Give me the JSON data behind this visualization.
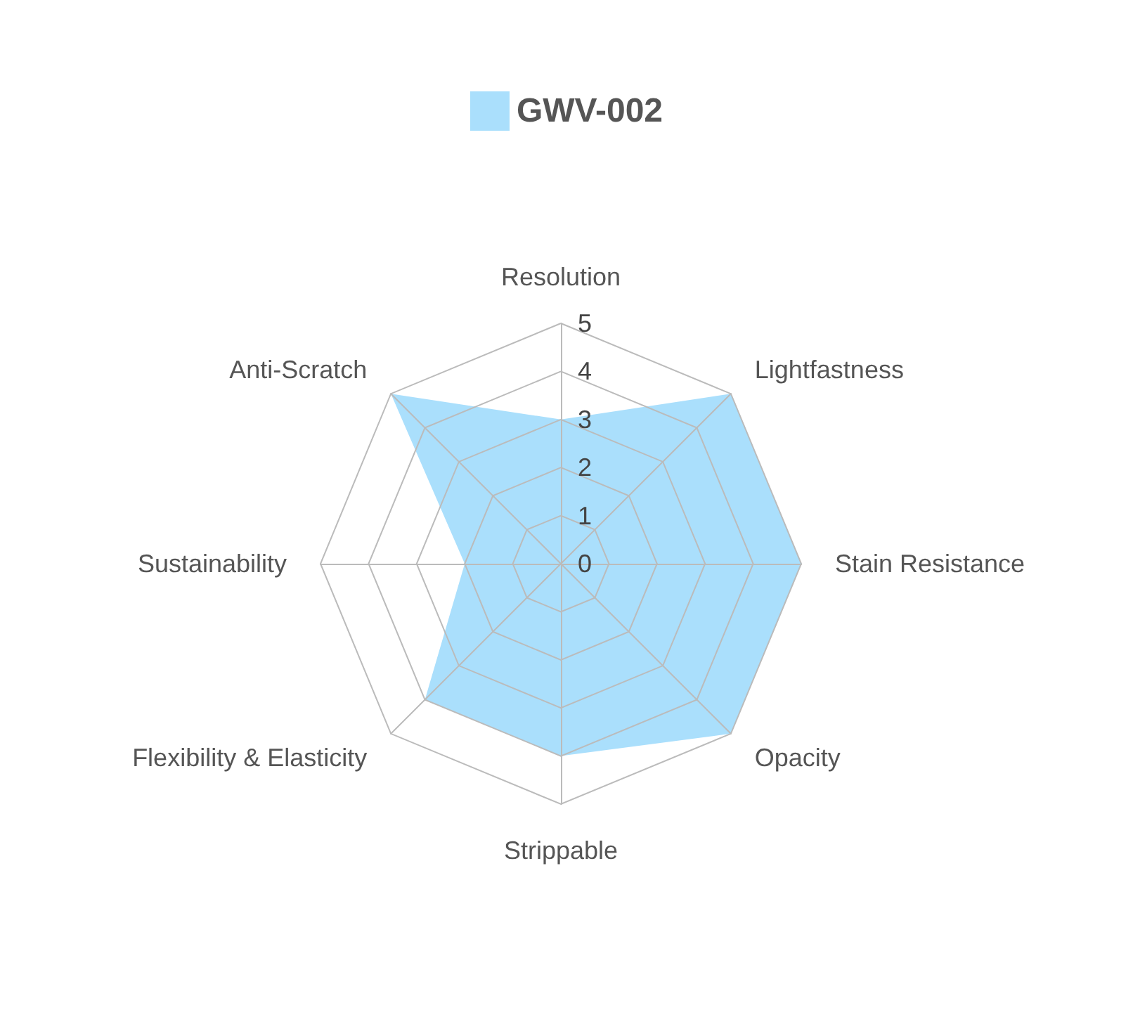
{
  "chart_data": {
    "type": "radar",
    "categories": [
      "Resolution",
      "Lightfastness",
      "Stain Resistance",
      "Opacity",
      "Strippable",
      "Flexibility & Elasticity",
      "Sustainability",
      "Anti-Scratch"
    ],
    "series": [
      {
        "name": "GWV-002",
        "color": "#aadffc",
        "values": [
          3,
          5,
          5,
          5,
          4,
          4,
          2,
          5
        ]
      }
    ],
    "ylim": [
      0,
      5
    ],
    "yticks": [
      0,
      1,
      2,
      3,
      4,
      5
    ],
    "legend": "top"
  }
}
